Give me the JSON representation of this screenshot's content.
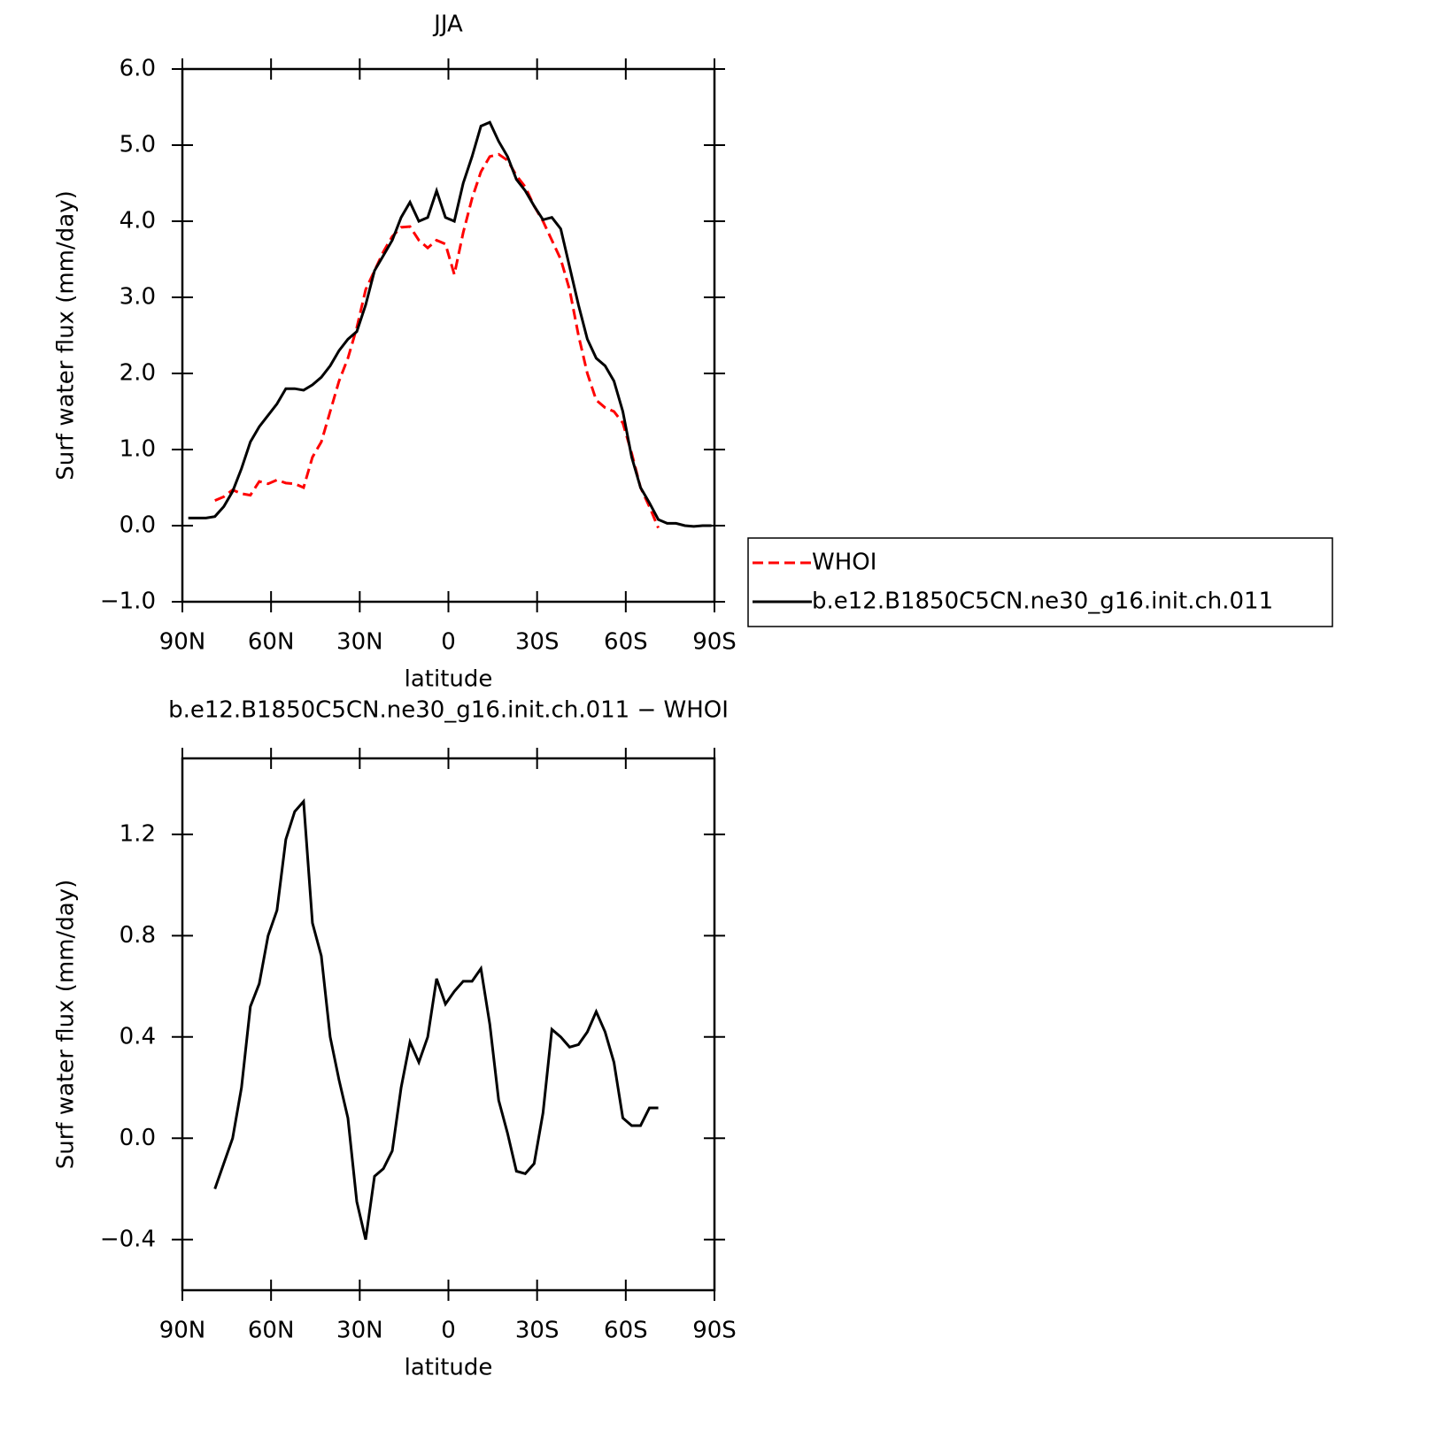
{
  "chart_data": [
    {
      "type": "line",
      "title": "JJA",
      "xlabel": "latitude",
      "ylabel": "Surf water flux (mm/day)",
      "x": [
        88,
        85,
        82,
        79,
        76,
        73,
        70,
        67,
        64,
        61,
        58,
        55,
        52,
        49,
        46,
        43,
        40,
        37,
        34,
        31,
        28,
        25,
        22,
        19,
        16,
        13,
        10,
        7,
        4,
        1,
        -2,
        -5,
        -8,
        -11,
        -14,
        -17,
        -20,
        -23,
        -26,
        -29,
        -32,
        -35,
        -38,
        -41,
        -44,
        -47,
        -50,
        -53,
        -56,
        -59,
        -62,
        -65,
        -68,
        -71,
        -74,
        -77,
        -80,
        -83,
        -86,
        -89
      ],
      "series": [
        {
          "name": "WHOI",
          "color": "#ff0000",
          "line_style": "dashed",
          "values": [
            null,
            null,
            null,
            0.33,
            0.38,
            0.47,
            0.42,
            0.4,
            0.58,
            0.55,
            0.6,
            0.56,
            0.55,
            0.5,
            0.9,
            1.1,
            1.5,
            1.9,
            2.2,
            2.6,
            3.1,
            3.35,
            3.6,
            3.8,
            3.92,
            3.93,
            3.75,
            3.65,
            3.75,
            3.7,
            3.3,
            3.85,
            4.3,
            4.65,
            4.85,
            4.88,
            4.8,
            4.6,
            4.45,
            4.2,
            4.0,
            3.75,
            3.5,
            3.1,
            2.5,
            2.0,
            1.65,
            1.55,
            1.5,
            1.35,
            0.95,
            0.5,
            0.25,
            -0.03,
            null,
            null,
            null,
            null,
            null,
            null
          ]
        },
        {
          "name": "b.e12.B1850C5CN.ne30_g16.init.ch.011",
          "color": "#000000",
          "line_style": "solid",
          "values": [
            0.1,
            0.1,
            0.1,
            0.12,
            0.25,
            0.45,
            0.75,
            1.1,
            1.3,
            1.45,
            1.6,
            1.8,
            1.8,
            1.78,
            1.85,
            1.95,
            2.1,
            2.3,
            2.45,
            2.55,
            2.9,
            3.35,
            3.55,
            3.75,
            4.05,
            4.25,
            4.0,
            4.05,
            4.4,
            4.05,
            4.0,
            4.5,
            4.85,
            5.25,
            5.3,
            5.05,
            4.85,
            4.55,
            4.4,
            4.2,
            4.02,
            4.05,
            3.9,
            3.4,
            2.9,
            2.45,
            2.2,
            2.1,
            1.9,
            1.5,
            0.9,
            0.5,
            0.3,
            0.08,
            0.03,
            0.03,
            0.0,
            -0.01,
            0.0,
            0.0
          ]
        }
      ],
      "xlim": [
        90,
        -90
      ],
      "xticks": [
        {
          "value": 90,
          "label": "90N"
        },
        {
          "value": 60,
          "label": "60N"
        },
        {
          "value": 30,
          "label": "30N"
        },
        0,
        {
          "value": -30,
          "label": "30S"
        },
        {
          "value": -60,
          "label": "60S"
        },
        {
          "value": -90,
          "label": "90S"
        }
      ],
      "ylim": [
        -1,
        6
      ],
      "yticks": [
        {
          "value": -1,
          "label": "−1.0"
        },
        {
          "value": 0,
          "label": "0.0"
        },
        {
          "value": 1,
          "label": "1.0"
        },
        {
          "value": 2,
          "label": "2.0"
        },
        {
          "value": 3,
          "label": "3.0"
        },
        {
          "value": 4,
          "label": "4.0"
        },
        {
          "value": 5,
          "label": "5.0"
        },
        {
          "value": 6,
          "label": "6.0"
        }
      ],
      "legend": "right"
    },
    {
      "type": "line",
      "title": "b.e12.B1850C5CN.ne30_g16.init.ch.011 − WHOI",
      "xlabel": "latitude",
      "ylabel": "Surf water flux (mm/day)",
      "x": [
        88,
        85,
        82,
        79,
        76,
        73,
        70,
        67,
        64,
        61,
        58,
        55,
        52,
        49,
        46,
        43,
        40,
        37,
        34,
        31,
        28,
        25,
        22,
        19,
        16,
        13,
        10,
        7,
        4,
        1,
        -2,
        -5,
        -8,
        -11,
        -14,
        -17,
        -20,
        -23,
        -26,
        -29,
        -32,
        -35,
        -38,
        -41,
        -44,
        -47,
        -50,
        -53,
        -56,
        -59,
        -62,
        -65,
        -68,
        -71,
        -74,
        -77,
        -80,
        -83,
        -86,
        -89
      ],
      "series": [
        {
          "color": "#000000",
          "line_style": "solid",
          "values": [
            null,
            null,
            null,
            -0.2,
            -0.1,
            0.0,
            0.2,
            0.52,
            0.61,
            0.8,
            0.9,
            1.18,
            1.29,
            1.33,
            0.85,
            0.72,
            0.4,
            0.23,
            0.08,
            -0.25,
            -0.4,
            -0.15,
            -0.12,
            -0.05,
            0.2,
            0.38,
            0.3,
            0.4,
            0.63,
            0.53,
            0.58,
            0.62,
            0.62,
            0.67,
            0.45,
            0.15,
            0.02,
            -0.13,
            -0.14,
            -0.1,
            0.1,
            0.43,
            0.4,
            0.36,
            0.37,
            0.42,
            0.5,
            0.42,
            0.3,
            0.08,
            0.05,
            0.05,
            0.12,
            0.12,
            null,
            null,
            null,
            null,
            null,
            null
          ]
        }
      ],
      "xlim": [
        90,
        -90
      ],
      "xticks": [
        {
          "value": 90,
          "label": "90N"
        },
        {
          "value": 60,
          "label": "60N"
        },
        {
          "value": 30,
          "label": "30N"
        },
        0,
        {
          "value": -30,
          "label": "30S"
        },
        {
          "value": -60,
          "label": "60S"
        },
        {
          "value": -90,
          "label": "90S"
        }
      ],
      "ylim": [
        -0.6,
        1.5
      ],
      "yticks": [
        {
          "value": -0.4,
          "label": "−0.4"
        },
        {
          "value": 0,
          "label": "0.0"
        },
        {
          "value": 0.4,
          "label": "0.4"
        },
        {
          "value": 0.8,
          "label": "0.8"
        },
        {
          "value": 1.2,
          "label": "1.2"
        }
      ]
    }
  ]
}
